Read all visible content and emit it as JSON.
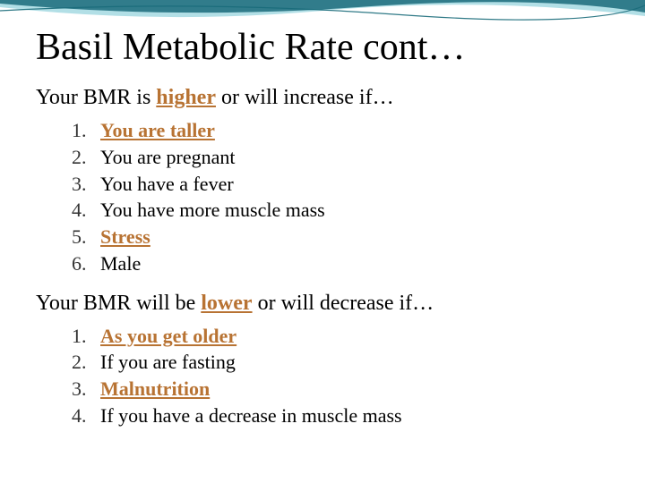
{
  "title": "Basil Metabolic Rate cont…",
  "higher_intro_pre": "Your BMR is ",
  "higher_keyword": "higher",
  "higher_intro_post": " or will increase if…",
  "higher_items": [
    {
      "num": "1.",
      "text": "You are taller",
      "emphasized": true
    },
    {
      "num": "2.",
      "text": "You are pregnant",
      "emphasized": false
    },
    {
      "num": "3.",
      "text": "You have a fever",
      "emphasized": false
    },
    {
      "num": "4.",
      "text": "You have more muscle mass",
      "emphasized": false
    },
    {
      "num": "5.",
      "text": "Stress",
      "emphasized": true
    },
    {
      "num": "6.",
      "text": "Male",
      "emphasized": false
    }
  ],
  "lower_intro_pre": "Your BMR will be ",
  "lower_keyword": "lower",
  "lower_intro_post": " or will decrease if…",
  "lower_items": [
    {
      "num": "1.",
      "text": "As you get older",
      "emphasized": true
    },
    {
      "num": "2.",
      "text": "If you are fasting",
      "emphasized": false
    },
    {
      "num": "3.",
      "text": "Malnutrition",
      "emphasized": true
    },
    {
      "num": "4.",
      "text": "If you have a decrease in muscle mass",
      "emphasized": false
    }
  ],
  "colors": {
    "title": "#000000",
    "body": "#000000",
    "keyword": "#b87333",
    "emphasized": "#b87333",
    "wave_dark": "#1a6b7a",
    "wave_light": "#7fc9d6",
    "background": "#ffffff"
  },
  "typography": {
    "title_fontsize": 42,
    "intro_fontsize": 24,
    "item_fontsize": 22,
    "font_family": "Georgia, Times New Roman, serif"
  }
}
